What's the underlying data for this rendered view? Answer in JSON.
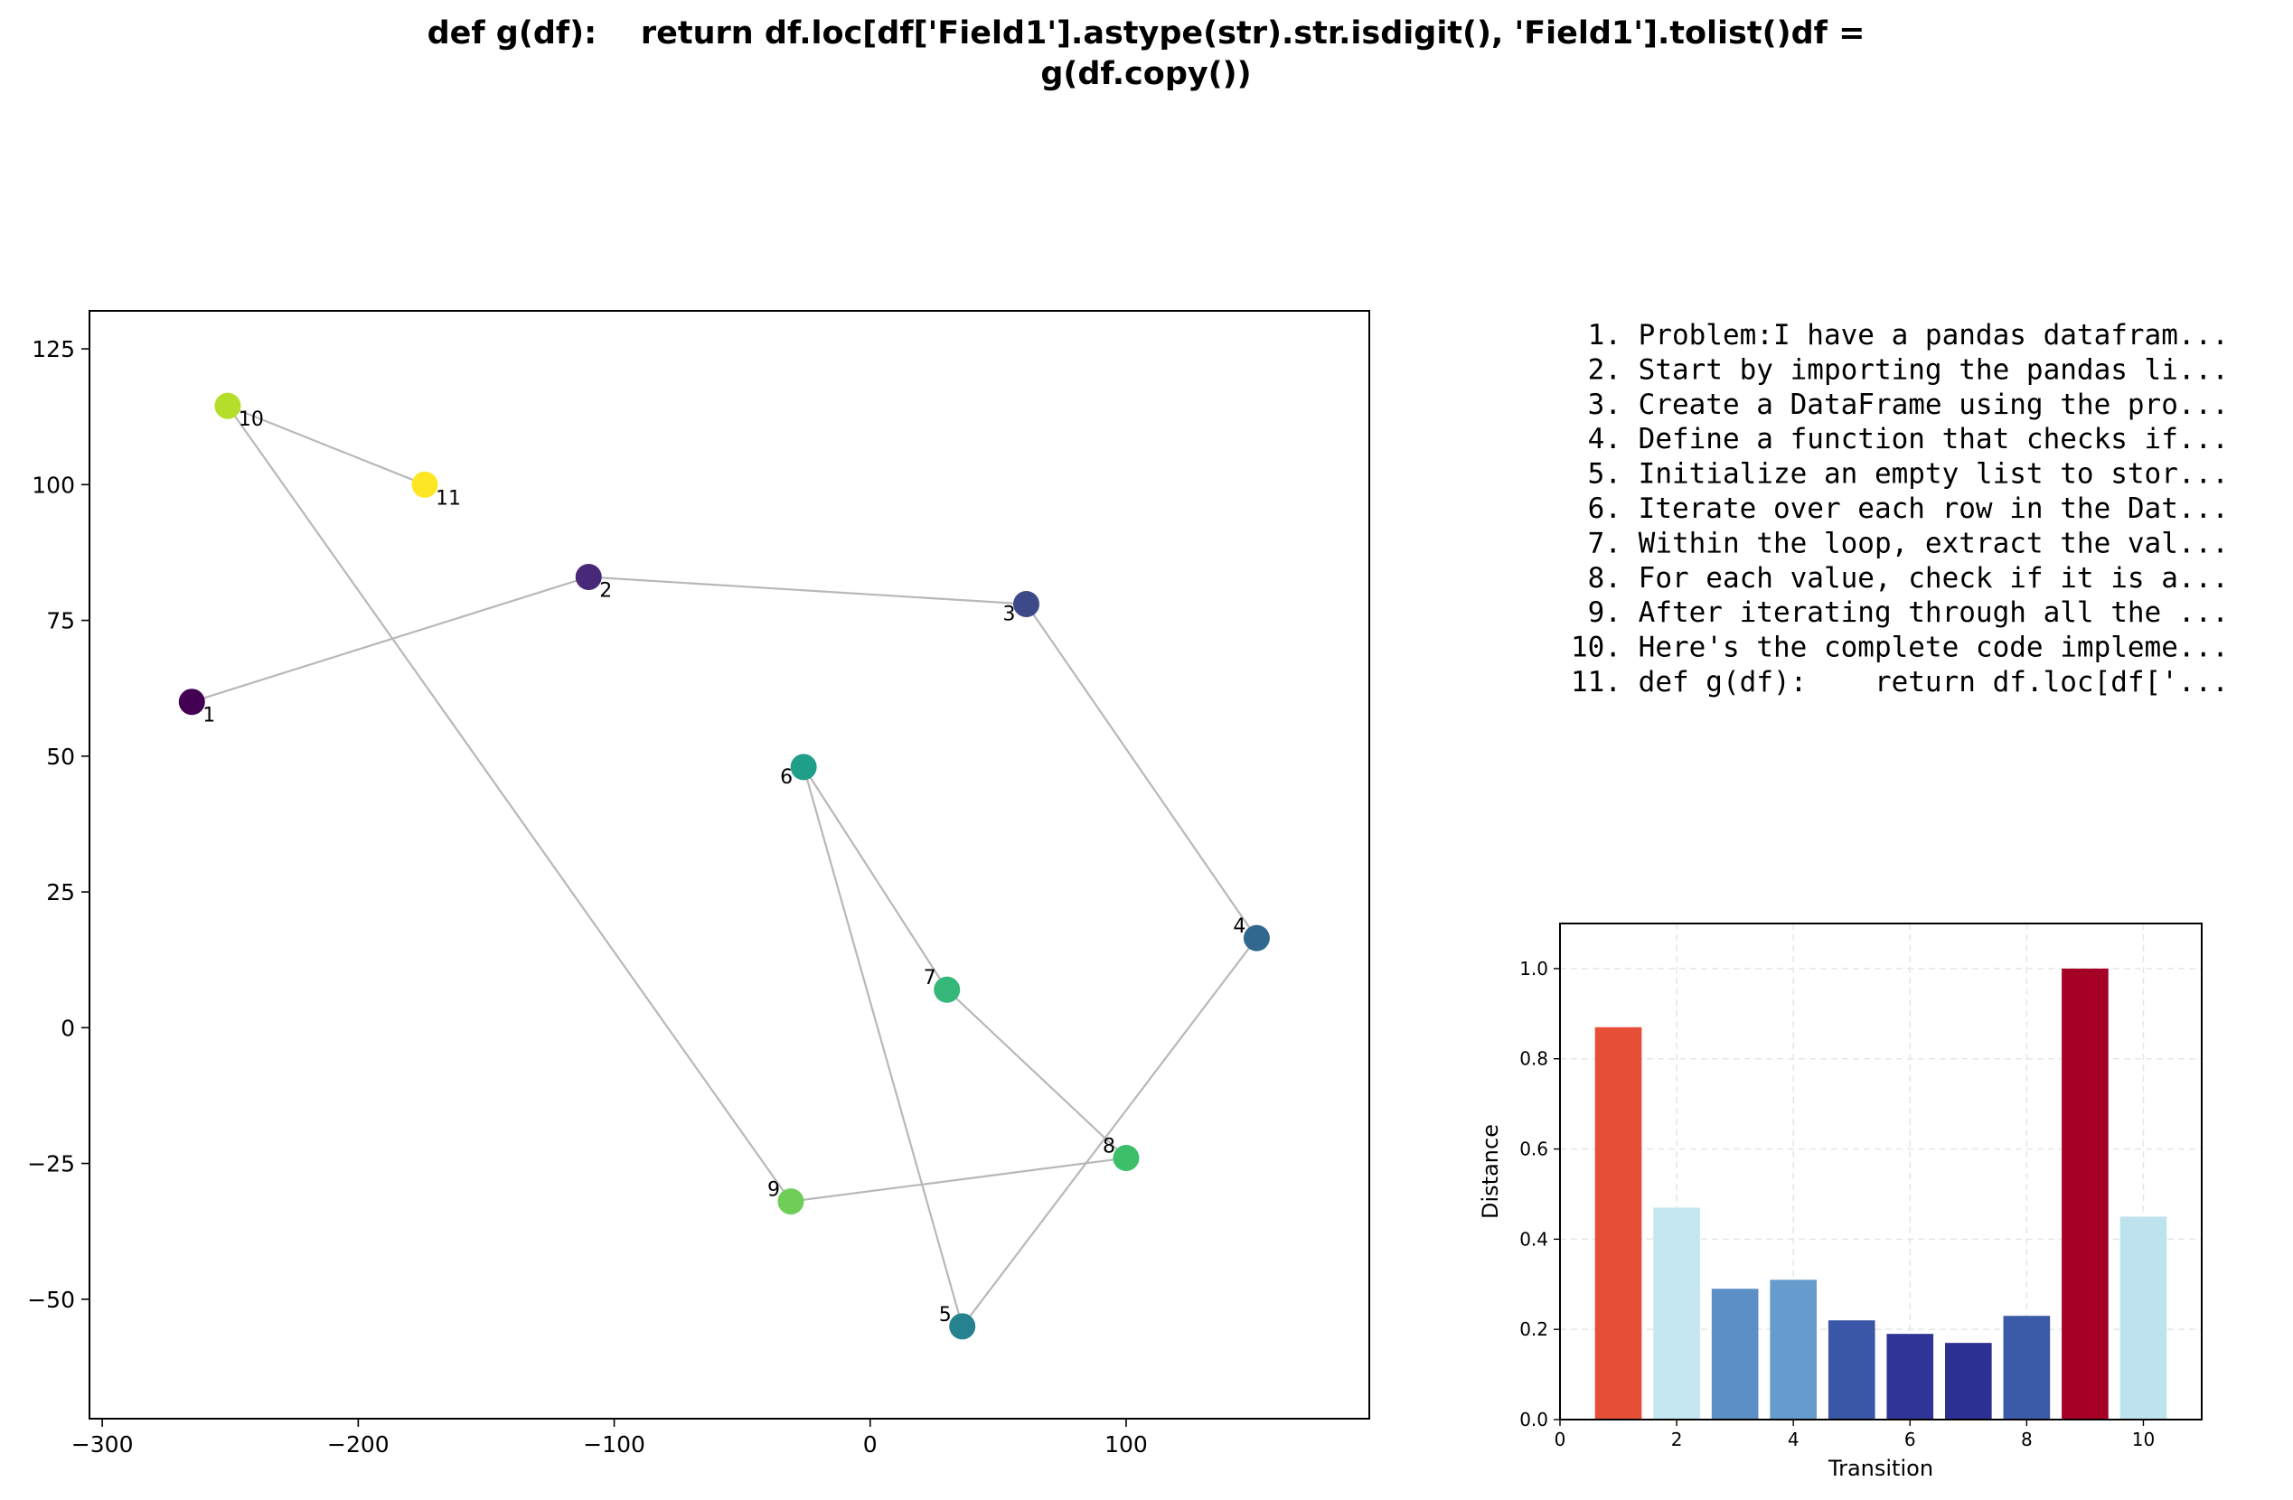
{
  "figure": {
    "title_line1": "def g(df):    return df.loc[df['Field1'].astype(str).str.isdigit(), 'Field1'].tolist()df =",
    "title_line2": "g(df.copy())"
  },
  "chart_data": [
    {
      "type": "scatter",
      "connected": true,
      "colormap": "viridis",
      "xlim": [
        -305,
        195
      ],
      "ylim": [
        -72,
        132
      ],
      "xticks": [
        -300,
        -200,
        -100,
        0,
        100
      ],
      "yticks": [
        -50,
        -25,
        0,
        25,
        50,
        75,
        100,
        125
      ],
      "grid": false,
      "points": [
        {
          "label": "1",
          "x": -265,
          "y": 60,
          "color": "#440154"
        },
        {
          "label": "2",
          "x": -110,
          "y": 83,
          "color": "#482878"
        },
        {
          "label": "3",
          "x": 61,
          "y": 78,
          "color": "#3e4989"
        },
        {
          "label": "4",
          "x": 151,
          "y": 16.5,
          "color": "#31688e"
        },
        {
          "label": "5",
          "x": 36,
          "y": -55,
          "color": "#26828e"
        },
        {
          "label": "6",
          "x": -26,
          "y": 48,
          "color": "#1f9e89"
        },
        {
          "label": "7",
          "x": 30,
          "y": 7,
          "color": "#35b779"
        },
        {
          "label": "8",
          "x": 100,
          "y": -24,
          "color": "#3dbf6a"
        },
        {
          "label": "9",
          "x": -31,
          "y": -32,
          "color": "#6ece58"
        },
        {
          "label": "10",
          "x": -251,
          "y": 114.5,
          "color": "#b5de2b"
        },
        {
          "label": "11",
          "x": -174,
          "y": 100,
          "color": "#fde725"
        }
      ]
    },
    {
      "type": "bar",
      "xlabel": "Transition",
      "ylabel": "Distance",
      "xlim": [
        0,
        11
      ],
      "ylim": [
        0,
        1.1
      ],
      "xticks": [
        0,
        2,
        4,
        6,
        8,
        10
      ],
      "yticks": [
        0.0,
        0.2,
        0.4,
        0.6,
        0.8,
        1.0
      ],
      "grid": true,
      "categories": [
        1,
        2,
        3,
        4,
        5,
        6,
        7,
        8,
        9,
        10
      ],
      "values": [
        0.87,
        0.47,
        0.29,
        0.31,
        0.22,
        0.19,
        0.17,
        0.23,
        1.0,
        0.45
      ],
      "colors": [
        "#e64f36",
        "#c3e6ef",
        "#5b8fc5",
        "#659ccd",
        "#3a56a6",
        "#2f3596",
        "#2c3091",
        "#3b5aa8",
        "#a50026",
        "#bde3ee"
      ]
    }
  ],
  "steps_list": {
    "items": [
      " 1. Problem:I have a pandas datafram...",
      " 2. Start by importing the pandas li...",
      " 3. Create a DataFrame using the pro...",
      " 4. Define a function that checks if...",
      " 5. Initialize an empty list to stor...",
      " 6. Iterate over each row in the Dat...",
      " 7. Within the loop, extract the val...",
      " 8. For each value, check if it is a...",
      " 9. After iterating through all the ...",
      "10. Here's the complete code impleme...",
      "11. def g(df):    return df.loc[df['..."
    ]
  }
}
